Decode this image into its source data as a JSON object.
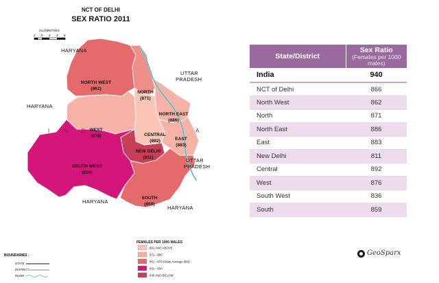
{
  "map": {
    "title_1": "NCT OF DELHI",
    "title_2": "SEX RATIO 2011",
    "scale": {
      "unit_label": "KILOMETRES",
      "ticks": [
        "2",
        "0",
        "2",
        "4",
        "6"
      ]
    },
    "state_labels": {
      "haryana_top": "HARYANA",
      "haryana_left": "HARYANA",
      "haryana_bottom": "HARYANA",
      "haryana_bottom_right": "HARYANA",
      "uttar_pradesh_top_1": "UTTAR",
      "uttar_pradesh_top_2": "PRADESH",
      "uttar_pradesh_right_1": "UTTAR",
      "uttar_pradesh_right_2": "PRADESH"
    },
    "nct_watermark_left": "I  N  D",
    "nct_watermark_right": "A",
    "districts": [
      {
        "key": "north_west",
        "name": "NORTH WEST",
        "value": "(862)",
        "ratio": 862,
        "color": "#e46a6c"
      },
      {
        "key": "north",
        "name": "NORTH",
        "value": "(871)",
        "ratio": 871,
        "color": "#ef8f8a"
      },
      {
        "key": "north_east",
        "name": "NORTH EAST",
        "value": "(886)",
        "ratio": 886,
        "color": "#f6b2a6"
      },
      {
        "key": "west",
        "name": "WEST",
        "value": "(876)",
        "ratio": 876,
        "color": "#f6b2a6"
      },
      {
        "key": "central",
        "name": "CENTRAL",
        "value": "(892)",
        "ratio": 892,
        "color": "#f9c6b8"
      },
      {
        "key": "east",
        "name": "EAST",
        "value": "(883)",
        "ratio": 883,
        "color": "#f6b2a6"
      },
      {
        "key": "new_delhi",
        "name": "NEW DELHI",
        "value": "(811)",
        "ratio": 811,
        "color": "#c73f57"
      },
      {
        "key": "south_west",
        "name": "SOUTH WEST",
        "value": "(836)",
        "ratio": 836,
        "color": "#d4157a"
      },
      {
        "key": "south",
        "name": "SOUTH",
        "value": "(859)",
        "ratio": 859,
        "color": "#e46a6c"
      }
    ],
    "legend": {
      "title": "FEMALES PER 1000 MALES",
      "items": [
        {
          "label": "891 AND ABOVE",
          "color": "#f9c6b8"
        },
        {
          "label": "871 - 890",
          "color": "#f6b2a6"
        },
        {
          "label": "851 - 870 (State Average 866)",
          "color": "#e46a6c"
        },
        {
          "label": "831 - 850",
          "color": "#d4157a"
        },
        {
          "label": "830 AND BELOW",
          "color": "#c73f57"
        }
      ]
    },
    "boundaries": {
      "title": "BOUNDARIES :",
      "items": [
        "STATE",
        "DISTRICT",
        "RIVER"
      ]
    }
  },
  "table": {
    "header_col1": "State/District",
    "header_col2": "Sex Ratio",
    "header_col2_sub": "(Females per 1000 males)",
    "header_color": "#9a6a9f",
    "rows": [
      {
        "name": "India",
        "value": "940"
      },
      {
        "name": "NCT of Delhi",
        "value": "866"
      },
      {
        "name": "North West",
        "value": "862"
      },
      {
        "name": "North",
        "value": "871"
      },
      {
        "name": "North East",
        "value": "886"
      },
      {
        "name": "East",
        "value": "883"
      },
      {
        "name": "New Delhi",
        "value": "811"
      },
      {
        "name": "Central",
        "value": "892"
      },
      {
        "name": "West",
        "value": "876"
      },
      {
        "name": "South West",
        "value": "836"
      },
      {
        "name": "South",
        "value": "859"
      }
    ]
  },
  "watermark": {
    "text": "GeoSparx"
  }
}
